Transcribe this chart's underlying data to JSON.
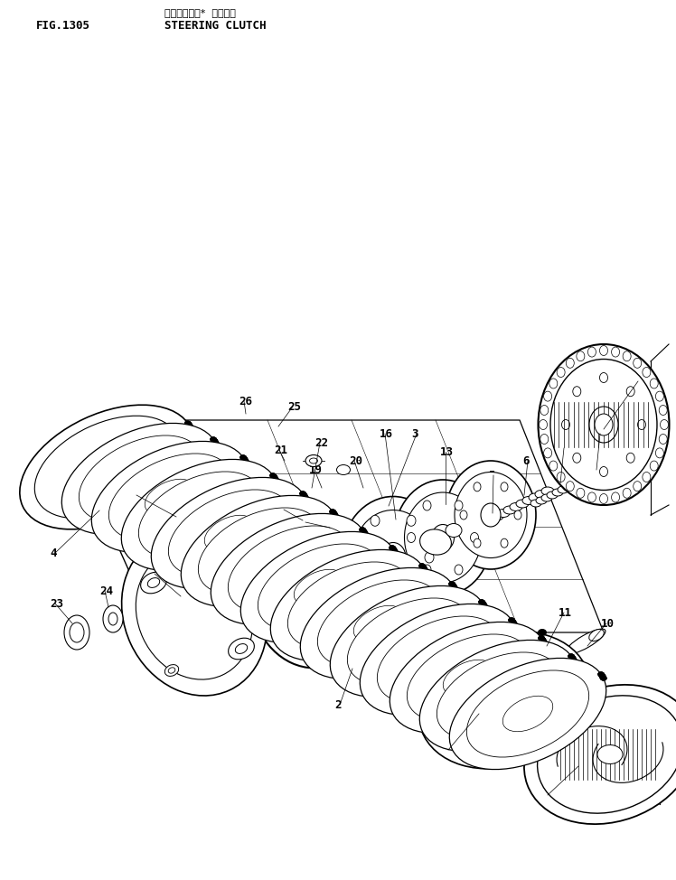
{
  "title_japanese": "ステアリング＊ クラッチ",
  "title_english": "STEERING CLUTCH",
  "fig_label": "FIG.1305",
  "background_color": "#ffffff",
  "line_color": "#000000",
  "fig_size": [
    7.48,
    9.74
  ],
  "dpi": 100
}
